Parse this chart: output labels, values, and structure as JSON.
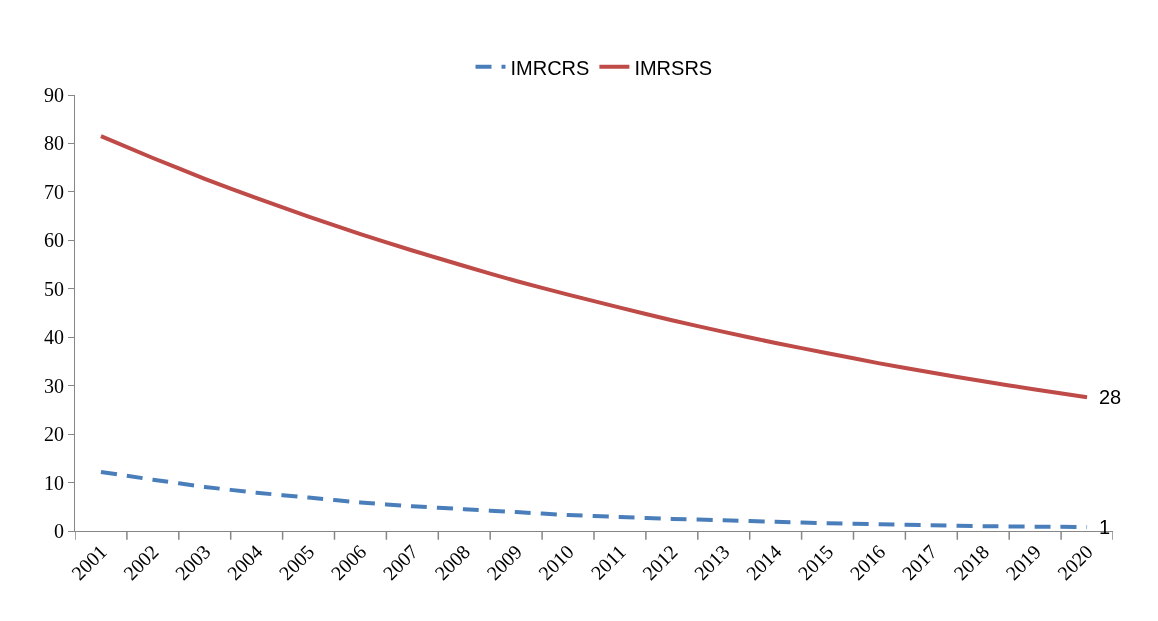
{
  "chart_data": {
    "type": "line",
    "categories": [
      "2001",
      "2002",
      "2003",
      "2004",
      "2005",
      "2006",
      "2007",
      "2008",
      "2009",
      "2010",
      "2011",
      "2012",
      "2013",
      "2014",
      "2015",
      "2016",
      "2017",
      "2018",
      "2019",
      "2020"
    ],
    "series": [
      {
        "name": "IMRCRS",
        "color": "#4a7ebb",
        "line_style": "dashed",
        "values": [
          12.2,
          10.6,
          9.1,
          7.9,
          6.9,
          5.9,
          5.1,
          4.5,
          3.9,
          3.3,
          2.9,
          2.5,
          2.2,
          1.9,
          1.6,
          1.4,
          1.2,
          1.0,
          0.9,
          0.8
        ]
      },
      {
        "name": "IMRSRS",
        "color": "#be4b48",
        "line_style": "solid",
        "values": [
          81.5,
          77.0,
          72.7,
          68.7,
          64.9,
          61.3,
          57.9,
          54.7,
          51.6,
          48.8,
          46.1,
          43.5,
          41.1,
          38.8,
          36.7,
          34.6,
          32.7,
          30.9,
          29.2,
          27.6
        ]
      }
    ],
    "annotations": [
      {
        "text": "28",
        "x": "2020",
        "y": 27.6
      },
      {
        "text": "1",
        "x": "2020",
        "y": 0.8
      }
    ],
    "ylim": [
      0,
      90
    ],
    "yticks": [
      0,
      10,
      20,
      30,
      40,
      50,
      60,
      70,
      80,
      90
    ],
    "legend": "top",
    "marker": "none"
  }
}
